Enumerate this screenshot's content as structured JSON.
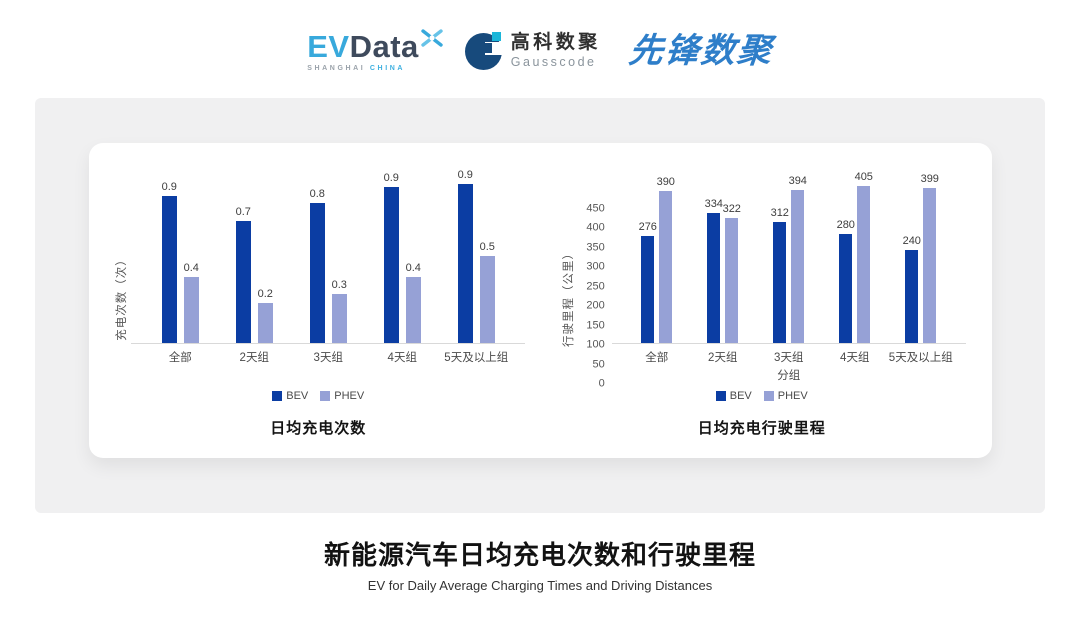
{
  "header": {
    "evdata": {
      "ev": "EV",
      "data": "Data",
      "sub_left": "SHANGHAI",
      "sub_right": "CHINA"
    },
    "gausscode": {
      "cn": "高科数聚",
      "en": "Gausscode"
    },
    "xianfeng": {
      "text": "先锋数聚"
    }
  },
  "colors": {
    "bev": "#0b3da3",
    "phev": "#96a1d6",
    "ev_blue": "#38a9dc",
    "evdata_dark": "#3e4a5c",
    "gauss_dark": "#174a7c",
    "gauss_cyan": "#1bb6d9",
    "xianfeng_blue": "#2e7ec9",
    "panel_gray": "#f0f0f1",
    "axis_line": "#d9d9d9"
  },
  "chart_data": [
    {
      "type": "bar",
      "title": "日均充电次数",
      "ylabel": "充电次数（次）",
      "xlabel": "",
      "categories": [
        "全部",
        "2天组",
        "3天组",
        "4天组",
        "5天及以上组"
      ],
      "series": [
        {
          "name": "BEV",
          "values": [
            0.9,
            0.7,
            0.8,
            0.9,
            0.9
          ],
          "bar_heights_est": [
            0.84,
            0.7,
            0.8,
            0.89,
            0.91
          ]
        },
        {
          "name": "PHEV",
          "values": [
            0.4,
            0.2,
            0.3,
            0.4,
            0.5
          ],
          "bar_heights_est": [
            0.38,
            0.23,
            0.28,
            0.38,
            0.5
          ]
        }
      ],
      "ylim": [
        0,
        1.0
      ],
      "y_ticks": [],
      "legend_position": "bottom",
      "grid": false
    },
    {
      "type": "bar",
      "title": "日均充电行驶里程",
      "ylabel": "行驶里程（公里）",
      "xlabel": "分组",
      "categories": [
        "全部",
        "2天组",
        "3天组",
        "4天组",
        "5天及以上组"
      ],
      "series": [
        {
          "name": "BEV",
          "values": [
            276,
            334,
            312,
            280,
            240
          ]
        },
        {
          "name": "PHEV",
          "values": [
            390,
            322,
            394,
            405,
            399
          ]
        }
      ],
      "ylim": [
        0,
        450
      ],
      "y_ticks": [
        0,
        50,
        100,
        150,
        200,
        250,
        300,
        350,
        400,
        450
      ],
      "legend_position": "bottom",
      "grid": false
    }
  ],
  "footer": {
    "title_cn": "新能源汽车日均充电次数和行驶里程",
    "title_en": "EV for Daily Average Charging Times and Driving Distances"
  }
}
